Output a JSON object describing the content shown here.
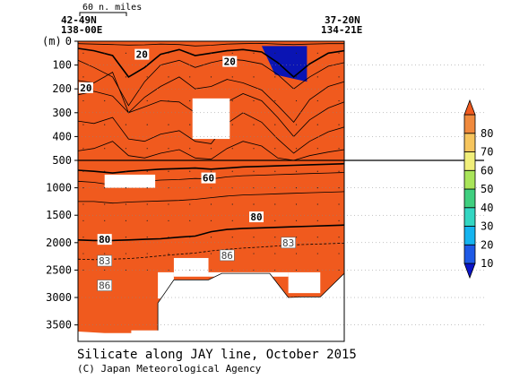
{
  "chart_data": {
    "type": "heatmap",
    "title": "Silicate along JAY line, October 2015",
    "credit": "(C) Japan Meteorological Agency",
    "unit_label": "(m)",
    "scale_label": "60 n. miles",
    "left_station": {
      "lat": "42-49N",
      "lon": "138-00E"
    },
    "right_station": {
      "lat": "37-20N",
      "lon": "134-21E"
    },
    "upper_panel": {
      "depth_range": [
        0,
        500
      ],
      "ticks": [
        "0",
        "100",
        "200",
        "300",
        "400",
        "500"
      ]
    },
    "lower_panel": {
      "depth_range": [
        500,
        3800
      ],
      "ticks": [
        "1000",
        "1500",
        "2000",
        "2500",
        "3000",
        "3500"
      ]
    },
    "colorbar": {
      "levels": [
        "10",
        "20",
        "30",
        "40",
        "50",
        "60",
        "70",
        "80"
      ],
      "colors": [
        "#0a14c8",
        "#1e5ae6",
        "#15b4ef",
        "#33d6c2",
        "#3fcf7f",
        "#a9e55a",
        "#f1ef7a",
        "#f6c55e",
        "#f08a3d",
        "#f05a1e"
      ]
    },
    "contour_labels": [
      {
        "text": "20",
        "x": 0.24,
        "d": 55
      },
      {
        "text": "20",
        "x": 0.57,
        "d": 85
      },
      {
        "text": "20",
        "x": 0.03,
        "d": 195
      },
      {
        "text": "60",
        "x": 0.49,
        "d": 820
      },
      {
        "text": "80",
        "x": 0.67,
        "d": 1530
      },
      {
        "text": "80",
        "x": 0.1,
        "d": 1940
      },
      {
        "text": "83",
        "x": 0.1,
        "d": 2330
      },
      {
        "text": "86",
        "x": 0.56,
        "d": 2230
      },
      {
        "text": "83",
        "x": 0.79,
        "d": 2000
      },
      {
        "text": "86",
        "x": 0.1,
        "d": 2780
      }
    ]
  }
}
